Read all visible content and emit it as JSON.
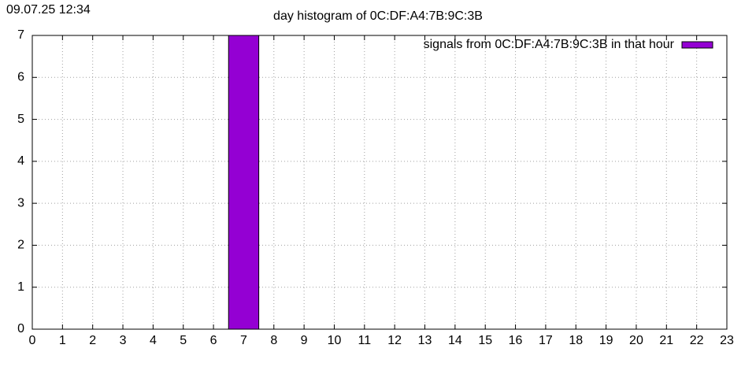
{
  "chart_data": {
    "type": "bar",
    "timestamp": "09.07.25 12:34",
    "title": "day histogram of 0C:DF:A4:7B:9C:3B",
    "x": [
      0,
      1,
      2,
      3,
      4,
      5,
      6,
      7,
      8,
      9,
      10,
      11,
      12,
      13,
      14,
      15,
      16,
      17,
      18,
      19,
      20,
      21,
      22,
      23
    ],
    "series": [
      {
        "name": "signals from 0C:DF:A4:7B:9C:3B in that hour",
        "color": "#9400d3",
        "values": [
          0,
          0,
          0,
          0,
          0,
          0,
          0,
          7,
          0,
          0,
          0,
          0,
          0,
          0,
          0,
          0,
          0,
          0,
          0,
          0,
          0,
          0,
          0,
          0
        ]
      }
    ],
    "xlim": [
      0,
      23
    ],
    "xticks": [
      0,
      1,
      2,
      3,
      4,
      5,
      6,
      7,
      8,
      9,
      10,
      11,
      12,
      13,
      14,
      15,
      16,
      17,
      18,
      19,
      20,
      21,
      22,
      23
    ],
    "ylim": [
      0,
      7
    ],
    "yticks": [
      0,
      1,
      2,
      3,
      4,
      5,
      6,
      7
    ],
    "grid": true,
    "legend": "top-right"
  }
}
